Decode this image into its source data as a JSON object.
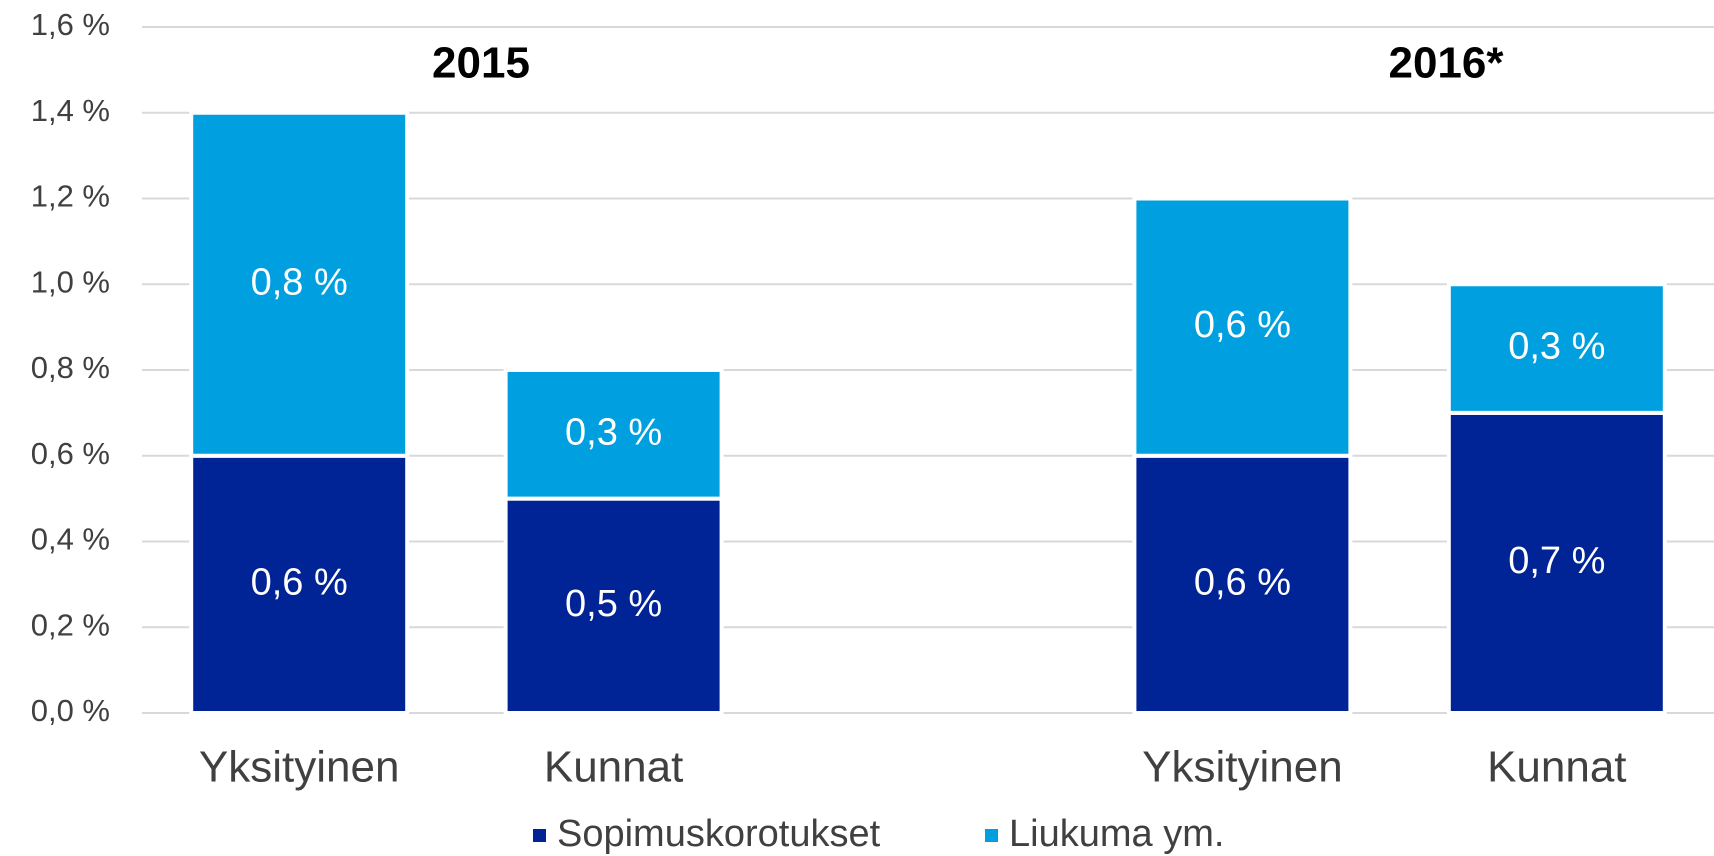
{
  "chart_data": {
    "type": "stacked_bar",
    "categories": [
      "Yksityinen",
      "Kunnat",
      null,
      "Yksityinen",
      "Kunnat"
    ],
    "series": [
      {
        "name": "Sopimuskorotukset",
        "color": "#002395",
        "values": [
          0.6,
          0.5,
          null,
          0.6,
          0.7
        ],
        "value_labels": [
          "0,6 %",
          "0,5 %",
          null,
          "0,6 %",
          "0,7 %"
        ]
      },
      {
        "name": "Liukuma ym.",
        "color": "#00a0e0",
        "values": [
          0.8,
          0.3,
          null,
          0.6,
          0.3
        ],
        "value_labels": [
          "0,8 %",
          "0,3 %",
          null,
          "0,6 %",
          "0,3 %"
        ]
      }
    ],
    "annotations": [
      "2015",
      "2016*"
    ],
    "ylim": [
      0,
      1.6
    ],
    "yticks": [
      {
        "value": 0,
        "label": "0,0 %"
      },
      {
        "value": 0.2,
        "label": "0,2 %"
      },
      {
        "value": 0.4,
        "label": "0,4 %"
      },
      {
        "value": 0.6,
        "label": "0,6 %"
      },
      {
        "value": 0.8,
        "label": "0,8 %"
      },
      {
        "value": 1.0,
        "label": "1,0 %"
      },
      {
        "value": 1.2,
        "label": "1,2 %"
      },
      {
        "value": 1.4,
        "label": "1,4 %"
      },
      {
        "value": 1.6,
        "label": "1,6 %"
      }
    ],
    "grid": true,
    "legend": "bottom"
  }
}
